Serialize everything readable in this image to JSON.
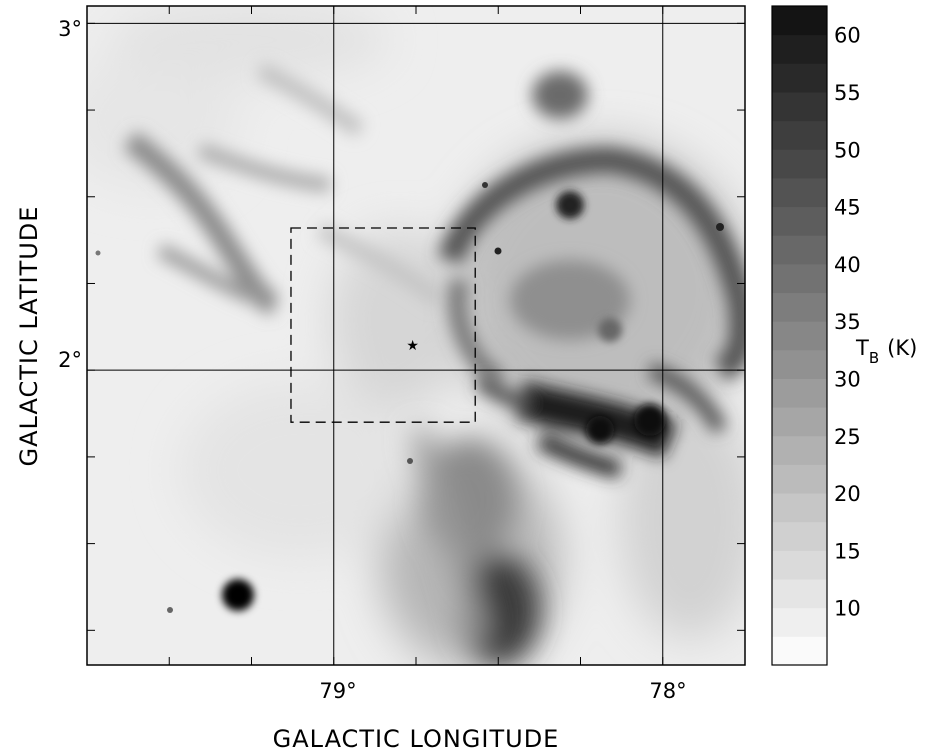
{
  "figure": {
    "x_axis_label": "GALACTIC LONGITUDE",
    "y_axis_label": "GALACTIC LATITUDE",
    "x_tick_labels": [
      "79°",
      "78°"
    ],
    "y_tick_labels": [
      "3°",
      "2°"
    ],
    "colorbar": {
      "unit_symbol": "T",
      "unit_subscript": "B",
      "unit_suffix": "(K)",
      "tick_labels": [
        "60",
        "55",
        "50",
        "45",
        "40",
        "35",
        "30",
        "25",
        "20",
        "15",
        "10"
      ],
      "levels": [
        60,
        55,
        50,
        45,
        40,
        35,
        30,
        25,
        20,
        15,
        10
      ],
      "min": 5,
      "max": 62.5
    },
    "map": {
      "l_range": [
        79.75,
        77.75
      ],
      "b_range": [
        1.15,
        3.05
      ],
      "grid_lines_l": [
        79.0,
        78.0
      ],
      "grid_lines_b": [
        3.0,
        2.0
      ],
      "box_l": [
        79.13,
        78.57
      ],
      "box_b": [
        1.85,
        2.41
      ],
      "star_l": 78.76,
      "star_b": 2.07
    }
  }
}
